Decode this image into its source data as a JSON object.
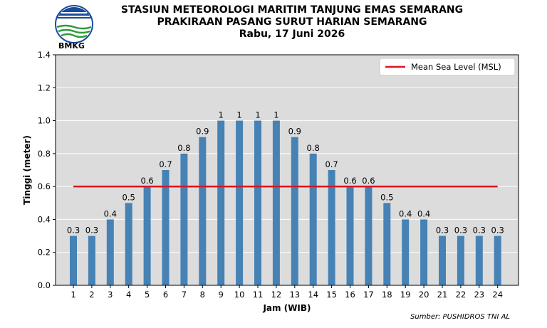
{
  "header": {
    "title_line1": "STASIUN METEOROLOGI MARITIM TANJUNG EMAS SEMARANG",
    "title_line2": "PRAKIRAAN PASANG SURUT HARIAN SEMARANG",
    "date_line": "Rabu, 17 Juni 2026",
    "logo_text": "BMKG"
  },
  "source": "Sumber: PUSHIDROS TNI AL",
  "colors": {
    "bar": "#4682b4",
    "msl_line": "#e0141e",
    "plot_bg": "#dcdcdc",
    "grid": "#ffffff"
  },
  "chart_data": {
    "type": "bar",
    "xlabel": "Jam (WIB)",
    "ylabel": "Tinggi (meter)",
    "ylim": [
      0,
      1.4
    ],
    "yticks": [
      "0.0",
      "0.2",
      "0.4",
      "0.6",
      "0.8",
      "1.0",
      "1.2",
      "1.4"
    ],
    "categories": [
      "1",
      "2",
      "3",
      "4",
      "5",
      "6",
      "7",
      "8",
      "9",
      "10",
      "11",
      "12",
      "13",
      "14",
      "15",
      "16",
      "17",
      "18",
      "19",
      "20",
      "21",
      "22",
      "23",
      "24"
    ],
    "values": [
      0.3,
      0.3,
      0.4,
      0.5,
      0.6,
      0.7,
      0.8,
      0.9,
      1,
      1,
      1,
      1,
      0.9,
      0.8,
      0.7,
      0.6,
      0.6,
      0.5,
      0.4,
      0.4,
      0.3,
      0.3,
      0.3,
      0.3
    ],
    "value_labels": [
      "0.3",
      "0.3",
      "0.4",
      "0.5",
      "0.6",
      "0.7",
      "0.8",
      "0.9",
      "1",
      "1",
      "1",
      "1",
      "0.9",
      "0.8",
      "0.7",
      "0.6",
      "0.6",
      "0.5",
      "0.4",
      "0.4",
      "0.3",
      "0.3",
      "0.3",
      "0.3"
    ],
    "msl": 0.6,
    "legend": {
      "label": "Mean Sea Level (MSL)",
      "placement": "top-right"
    },
    "grid": true
  }
}
